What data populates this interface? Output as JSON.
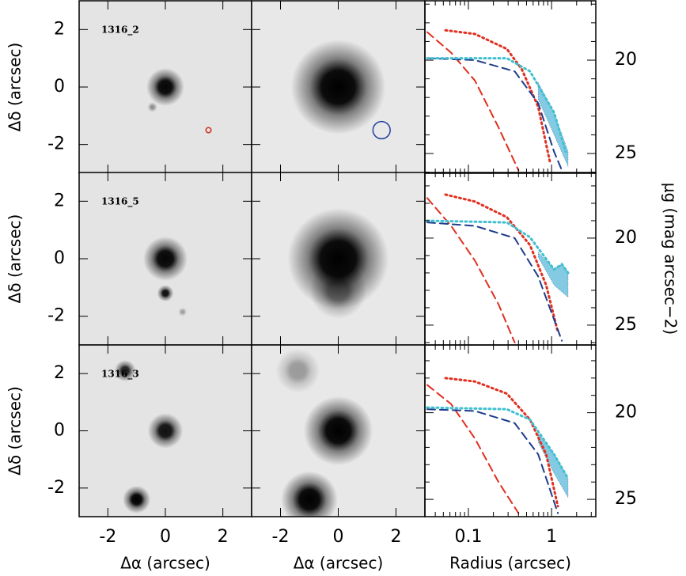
{
  "chart_data": [
    {
      "type": "image",
      "label": "1316_2",
      "ylabel": "Δδ (arcsec)",
      "background": "#e4e4e4",
      "xlim": [
        -3,
        3
      ],
      "ylim": [
        -3,
        3
      ],
      "xticks": [
        -2,
        0,
        2
      ],
      "yticks": [
        -2,
        0,
        2
      ],
      "sources": [
        {
          "x": 0,
          "y": 0,
          "size": 0.3,
          "color": "#050505"
        },
        {
          "x": -0.45,
          "y": -0.7,
          "size": 0.08,
          "color": "#909090"
        }
      ],
      "markers": [
        {
          "x": 1.5,
          "y": -1.5,
          "radius": 0.09,
          "color": "#d03020"
        }
      ]
    },
    {
      "type": "image",
      "background": "#e8e8e8",
      "xlim": [
        -3,
        3
      ],
      "ylim": [
        -3,
        3
      ],
      "xticks": [
        -2,
        0,
        2
      ],
      "yticks": [
        -2,
        0,
        2
      ],
      "sources": [
        {
          "x": 0,
          "y": 0,
          "size": 0.75,
          "color": "#000000"
        }
      ],
      "markers": [
        {
          "x": 1.5,
          "y": -1.5,
          "radius": 0.3,
          "color": "#2040a0"
        }
      ]
    },
    {
      "type": "profile",
      "xscale": "log",
      "xlim": [
        0.03,
        3.4
      ],
      "ylim": [
        26.06,
        16.82
      ],
      "xticks": [
        0.1,
        1
      ],
      "yticks": [
        20,
        25
      ],
      "xticks_minor": [
        0.04,
        0.05,
        0.06,
        0.07,
        0.08,
        0.09,
        0.2,
        0.3,
        0.4,
        0.5,
        0.6,
        0.7,
        0.8,
        0.9,
        2,
        3
      ],
      "yticks_minor": [
        17,
        18,
        19,
        21,
        22,
        23,
        24,
        26
      ],
      "series": [
        {
          "style": "band",
          "color": "#5ab8d8",
          "x": [
            0.69,
            1.07,
            1.58
          ],
          "values": [
            21.2,
            22.8,
            24.9
          ],
          "lower": [
            22.1,
            24.0,
            25.7
          ]
        },
        {
          "style": "dotted",
          "color": "#e03020",
          "x": [
            0.053,
            0.12,
            0.29,
            0.44,
            0.69,
            0.96
          ],
          "values": [
            18.4,
            18.6,
            19.4,
            20.5,
            22.5,
            25.5
          ]
        },
        {
          "style": "dashed",
          "color": "#e03020",
          "x": [
            0.032,
            0.062,
            0.12,
            0.23,
            0.4
          ],
          "values": [
            18.5,
            19.6,
            21.1,
            23.6,
            25.9
          ]
        },
        {
          "style": "dashed",
          "color": "#1e3c8c",
          "x": [
            0.032,
            0.12,
            0.36,
            0.69,
            1.07,
            1.33
          ],
          "values": [
            19.9,
            20.0,
            20.6,
            22.3,
            24.9,
            25.9
          ]
        },
        {
          "style": "dotted",
          "color": "#40c0d0",
          "x": [
            0.032,
            0.29,
            0.55,
            1.07,
            1.48
          ],
          "values": [
            19.9,
            19.9,
            20.6,
            22.8,
            24.9
          ]
        }
      ]
    },
    {
      "type": "image",
      "label": "1316_5",
      "ylabel": "Δδ (arcsec)",
      "background": "#e4e4e4",
      "xlim": [
        -3,
        3
      ],
      "ylim": [
        -3,
        3
      ],
      "xticks": [
        -2,
        0,
        2
      ],
      "yticks": [
        -2,
        0,
        2
      ],
      "sources": [
        {
          "x": 0,
          "y": 0,
          "size": 0.35,
          "color": "#050505"
        },
        {
          "x": 0,
          "y": -1.2,
          "size": 0.13,
          "color": "#101010"
        },
        {
          "x": 0.6,
          "y": -1.85,
          "size": 0.07,
          "color": "#a0a0a0"
        }
      ],
      "markers": []
    },
    {
      "type": "image",
      "background": "#e8e8e8",
      "xlim": [
        -3,
        3
      ],
      "ylim": [
        -3,
        3
      ],
      "xticks": [
        -2,
        0,
        2
      ],
      "yticks": [
        -2,
        0,
        2
      ],
      "sources": [
        {
          "x": 0,
          "y": -1.1,
          "size": 0.45,
          "color": "#707070"
        },
        {
          "x": 0,
          "y": 0,
          "size": 0.8,
          "color": "#000000"
        }
      ],
      "markers": []
    },
    {
      "type": "profile",
      "xscale": "log",
      "xlim": [
        0.03,
        3.4
      ],
      "ylim": [
        26.14,
        16.23
      ],
      "xticks": [
        0.1,
        1
      ],
      "yticks": [
        20,
        25
      ],
      "xticks_minor": [
        0.04,
        0.05,
        0.06,
        0.07,
        0.08,
        0.09,
        0.2,
        0.3,
        0.4,
        0.5,
        0.6,
        0.7,
        0.8,
        0.9,
        2,
        3
      ],
      "yticks_minor": [
        17,
        18,
        19,
        21,
        22,
        23,
        24,
        26
      ],
      "series": [
        {
          "style": "band",
          "color": "#5ab8d8",
          "x": [
            0.69,
            1.07,
            1.33,
            1.58
          ],
          "values": [
            20.8,
            21.8,
            21.5,
            22.0
          ],
          "lower": [
            21.1,
            22.7,
            23.1,
            23.4
          ]
        },
        {
          "style": "dotted",
          "color": "#e03020",
          "x": [
            0.053,
            0.12,
            0.29,
            0.55,
            0.86,
            1.19
          ],
          "values": [
            17.5,
            17.9,
            18.8,
            20.4,
            22.7,
            25.4
          ]
        },
        {
          "style": "dashed",
          "color": "#e03020",
          "x": [
            0.032,
            0.062,
            0.12,
            0.23,
            0.36
          ],
          "values": [
            17.7,
            19.3,
            21.3,
            23.8,
            26.0
          ]
        },
        {
          "style": "dashed",
          "color": "#1e3c8c",
          "x": [
            0.032,
            0.12,
            0.36,
            0.69,
            1.33
          ],
          "values": [
            19.1,
            19.3,
            20.0,
            22.2,
            25.9
          ]
        },
        {
          "style": "dotted",
          "color": "#40c0d0",
          "x": [
            0.032,
            0.29,
            0.55,
            1.07,
            1.33,
            1.58
          ],
          "values": [
            19.0,
            19.1,
            19.95,
            21.8,
            21.5,
            22.0
          ]
        }
      ]
    },
    {
      "type": "image",
      "label": "1316_3",
      "ylabel": "Δδ (arcsec)",
      "xlabel": "Δα (arcsec)",
      "background": "#e4e4e4",
      "xlim": [
        -3,
        3
      ],
      "ylim": [
        -3,
        3
      ],
      "xticks": [
        -2,
        0,
        2
      ],
      "yticks": [
        -2,
        0,
        2
      ],
      "sources": [
        {
          "x": 0,
          "y": 0,
          "size": 0.28,
          "color": "#101010"
        },
        {
          "x": -1.4,
          "y": 2.1,
          "size": 0.17,
          "color": "#202020"
        },
        {
          "x": -1.0,
          "y": -2.4,
          "size": 0.22,
          "color": "#000000"
        }
      ],
      "markers": []
    },
    {
      "type": "image",
      "xlabel": "Δα (arcsec)",
      "background": "#e8e8e8",
      "xlim": [
        -3,
        3
      ],
      "ylim": [
        -3,
        3
      ],
      "xticks": [
        -2,
        0,
        2
      ],
      "yticks": [
        -2,
        0,
        2
      ],
      "sources": [
        {
          "x": -1.4,
          "y": 2.1,
          "size": 0.35,
          "color": "#9a9a9a"
        },
        {
          "x": 0,
          "y": 0,
          "size": 0.55,
          "color": "#000000"
        },
        {
          "x": -1.0,
          "y": -2.4,
          "size": 0.45,
          "color": "#000000"
        }
      ],
      "markers": []
    },
    {
      "type": "profile",
      "xscale": "log",
      "xlabel": "Radius (arcsec)",
      "y2label": "μg (mag arcsec−2)",
      "xlim": [
        0.03,
        3.4
      ],
      "ylim": [
        26.0,
        16.09
      ],
      "xticks": [
        0.1,
        1
      ],
      "yticks": [
        20,
        25
      ],
      "xticks_minor": [
        0.04,
        0.05,
        0.06,
        0.07,
        0.08,
        0.09,
        0.2,
        0.3,
        0.4,
        0.5,
        0.6,
        0.7,
        0.8,
        0.9,
        2,
        3
      ],
      "yticks_minor": [
        17,
        18,
        19,
        21,
        22,
        23,
        24,
        26
      ],
      "series": [
        {
          "style": "band",
          "color": "#5ab8d8",
          "x": [
            0.69,
            1.07,
            1.58
          ],
          "values": [
            21.2,
            22.4,
            23.8
          ],
          "lower": [
            21.7,
            23.5,
            24.9
          ]
        },
        {
          "style": "dotted",
          "color": "#e03020",
          "x": [
            0.053,
            0.12,
            0.29,
            0.55,
            0.86,
            1.19
          ],
          "values": [
            18.0,
            18.2,
            18.9,
            20.4,
            22.4,
            25.4
          ]
        },
        {
          "style": "dashed",
          "color": "#e03020",
          "x": [
            0.032,
            0.062,
            0.12,
            0.23,
            0.4
          ],
          "values": [
            18.4,
            19.5,
            21.5,
            24.0,
            25.8
          ]
        },
        {
          "style": "dashed",
          "color": "#1e3c8c",
          "x": [
            0.032,
            0.12,
            0.36,
            0.69,
            1.19
          ],
          "values": [
            19.8,
            19.9,
            20.6,
            22.4,
            25.8
          ]
        },
        {
          "style": "dotted",
          "color": "#40c0d0",
          "x": [
            0.032,
            0.29,
            0.55,
            1.07,
            1.58
          ],
          "values": [
            19.7,
            19.8,
            20.4,
            22.4,
            23.8
          ]
        }
      ]
    }
  ]
}
